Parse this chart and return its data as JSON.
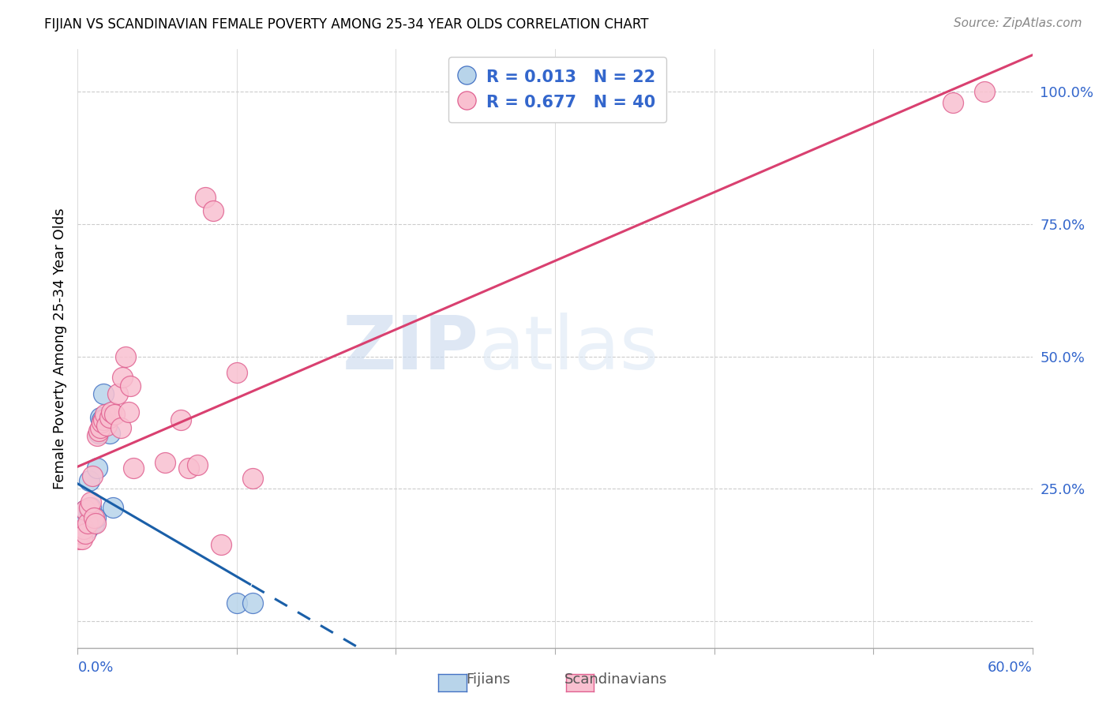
{
  "title": "FIJIAN VS SCANDINAVIAN FEMALE POVERTY AMONG 25-34 YEAR OLDS CORRELATION CHART",
  "source": "Source: ZipAtlas.com",
  "ylabel": "Female Poverty Among 25-34 Year Olds",
  "fijians_R": 0.013,
  "fijians_N": 22,
  "scandinavians_R": 0.677,
  "scandinavians_N": 40,
  "fijian_color": "#b8d4ea",
  "scandinavian_color": "#f9c0d0",
  "fijian_edge_color": "#4472c4",
  "scandinavian_edge_color": "#e06090",
  "fijian_line_color": "#1a5fa8",
  "scandinavian_line_color": "#d94070",
  "watermark_zip": "ZIP",
  "watermark_atlas": "atlas",
  "xlim": [
    0.0,
    0.6
  ],
  "ylim": [
    -0.05,
    1.08
  ],
  "fijian_x": [
    0.001,
    0.002,
    0.003,
    0.004,
    0.005,
    0.005,
    0.006,
    0.007,
    0.007,
    0.008,
    0.009,
    0.01,
    0.011,
    0.012,
    0.013,
    0.014,
    0.015,
    0.016,
    0.02,
    0.022,
    0.1,
    0.11
  ],
  "fijian_y": [
    0.165,
    0.175,
    0.185,
    0.175,
    0.185,
    0.21,
    0.175,
    0.21,
    0.265,
    0.215,
    0.19,
    0.185,
    0.195,
    0.29,
    0.355,
    0.385,
    0.38,
    0.43,
    0.355,
    0.215,
    0.035,
    0.035
  ],
  "scandinavian_x": [
    0.001,
    0.002,
    0.003,
    0.004,
    0.005,
    0.005,
    0.006,
    0.007,
    0.008,
    0.009,
    0.01,
    0.011,
    0.012,
    0.013,
    0.014,
    0.015,
    0.016,
    0.017,
    0.018,
    0.02,
    0.021,
    0.023,
    0.025,
    0.027,
    0.028,
    0.03,
    0.032,
    0.033,
    0.035,
    0.055,
    0.065,
    0.07,
    0.075,
    0.08,
    0.085,
    0.09,
    0.1,
    0.11,
    0.55,
    0.57
  ],
  "scandinavian_y": [
    0.155,
    0.165,
    0.155,
    0.175,
    0.165,
    0.21,
    0.185,
    0.215,
    0.225,
    0.275,
    0.195,
    0.185,
    0.35,
    0.36,
    0.365,
    0.375,
    0.38,
    0.39,
    0.37,
    0.385,
    0.395,
    0.39,
    0.43,
    0.365,
    0.46,
    0.5,
    0.395,
    0.445,
    0.29,
    0.3,
    0.38,
    0.29,
    0.295,
    0.8,
    0.775,
    0.145,
    0.47,
    0.27,
    0.98,
    1.0
  ],
  "x_ticks": [
    0.0,
    0.1,
    0.2,
    0.3,
    0.4,
    0.5,
    0.6
  ],
  "y_ticks": [
    0.0,
    0.25,
    0.5,
    0.75,
    1.0
  ],
  "y_tick_labels": [
    "",
    "25.0%",
    "50.0%",
    "75.0%",
    "100.0%"
  ]
}
